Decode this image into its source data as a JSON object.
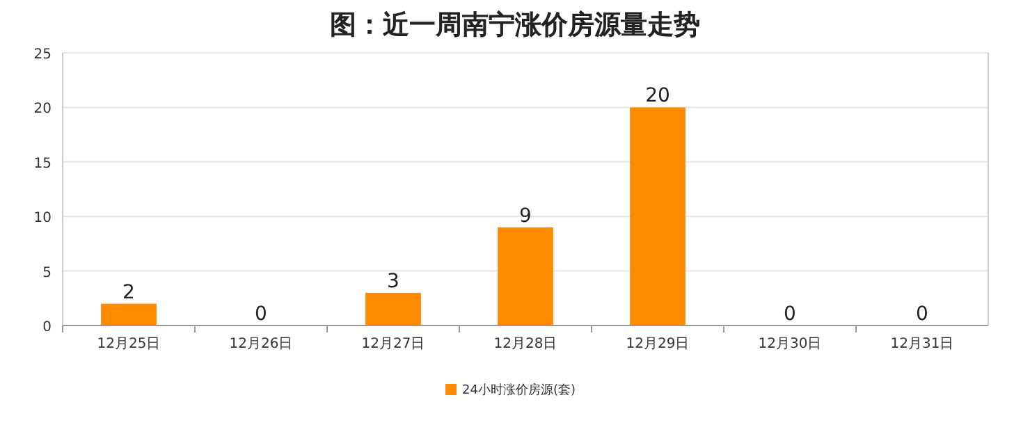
{
  "chart_data": {
    "type": "bar",
    "title": "图：近一周南宁涨价房源量走势",
    "categories": [
      "12月25日",
      "12月26日",
      "12月27日",
      "12月28日",
      "12月29日",
      "12月30日",
      "12月31日"
    ],
    "series": [
      {
        "name": "24小时涨价房源(套)",
        "color": "#ff8a00",
        "values": [
          2,
          0,
          3,
          9,
          20,
          0,
          0
        ]
      }
    ],
    "ylim": [
      0,
      25
    ],
    "yticks": [
      0,
      5,
      10,
      15,
      20,
      25
    ],
    "grid": "y",
    "data_labels": true,
    "legend": "bottom"
  }
}
